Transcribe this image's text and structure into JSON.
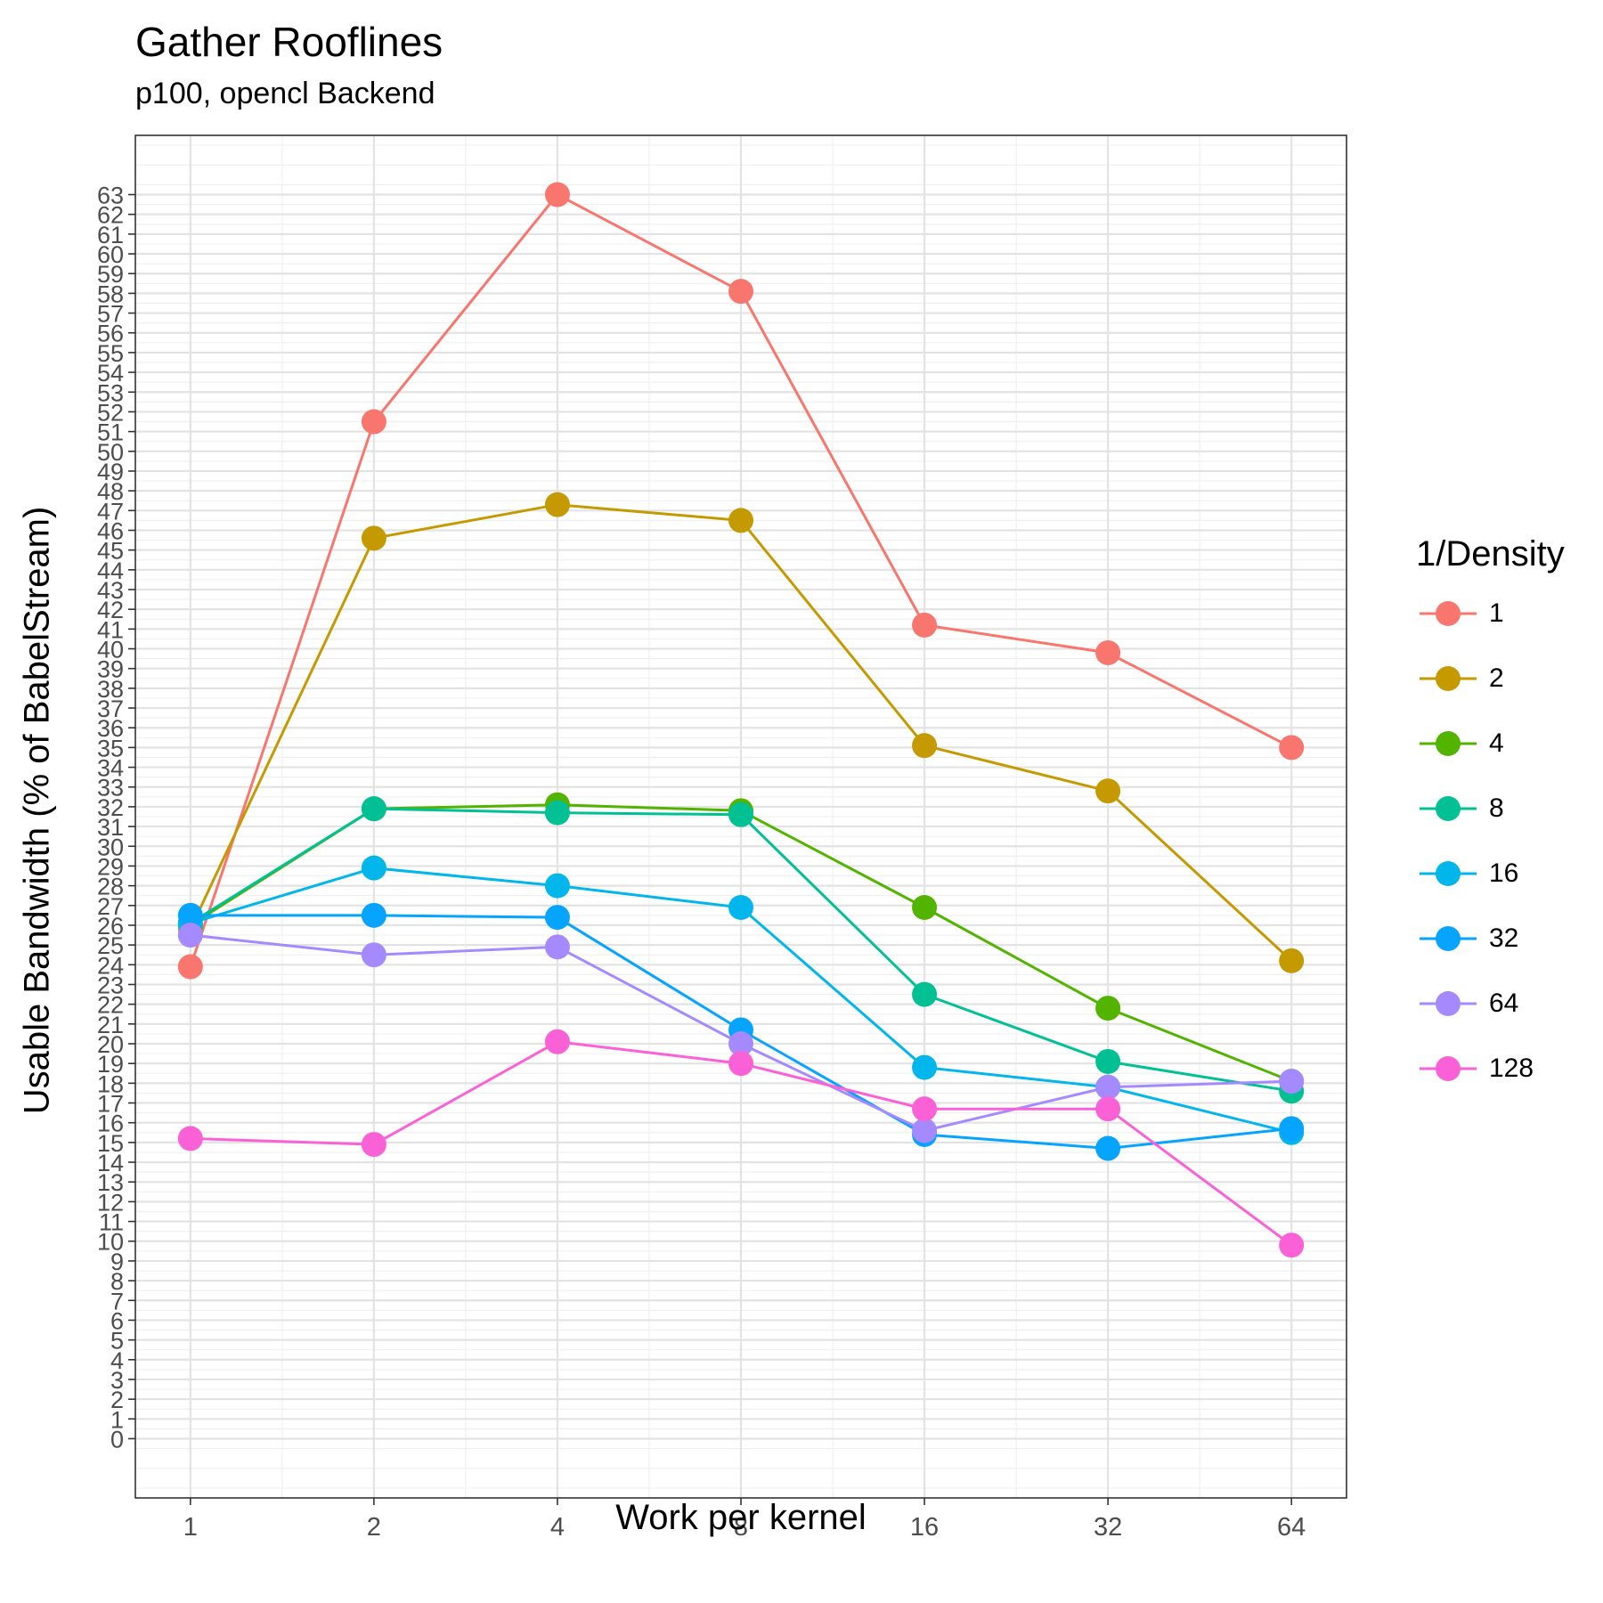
{
  "chart_data": {
    "type": "line",
    "title": "Gather Rooflines",
    "subtitle": "p100, opencl Backend",
    "xlabel": "Work per kernel",
    "ylabel": "Usable Bandwidth (% of BabelStream)",
    "x_scale": "log2",
    "x": [
      1,
      2,
      4,
      8,
      16,
      32,
      64
    ],
    "x_tick_labels": [
      "1",
      "2",
      "4",
      "8",
      "16",
      "32",
      "64"
    ],
    "ylim": [
      -3,
      66
    ],
    "y_ticks": [
      0,
      1,
      2,
      3,
      4,
      5,
      6,
      7,
      8,
      9,
      10,
      11,
      12,
      13,
      14,
      15,
      16,
      17,
      18,
      19,
      20,
      21,
      22,
      23,
      24,
      25,
      26,
      27,
      28,
      29,
      30,
      31,
      32,
      33,
      34,
      35,
      36,
      37,
      38,
      39,
      40,
      41,
      42,
      43,
      44,
      45,
      46,
      47,
      48,
      49,
      50,
      51,
      52,
      53,
      54,
      55,
      56,
      57,
      58,
      59,
      60,
      61,
      62,
      63
    ],
    "grid": true,
    "legend_title": "1/Density",
    "legend_position": "right",
    "series": [
      {
        "name": "1",
        "color": "#F8766D",
        "values": [
          23.9,
          51.5,
          63.0,
          58.1,
          41.2,
          39.8,
          35.0
        ]
      },
      {
        "name": "2",
        "color": "#C49A00",
        "values": [
          25.8,
          45.6,
          47.3,
          46.5,
          35.1,
          32.8,
          24.2
        ]
      },
      {
        "name": "4",
        "color": "#53B400",
        "values": [
          26.0,
          31.9,
          32.1,
          31.8,
          26.9,
          21.8,
          18.1
        ]
      },
      {
        "name": "8",
        "color": "#00C094",
        "values": [
          26.1,
          31.9,
          31.7,
          31.6,
          22.5,
          19.1,
          17.6
        ]
      },
      {
        "name": "16",
        "color": "#00B6EB",
        "values": [
          26.1,
          28.9,
          28.0,
          26.9,
          18.8,
          17.8,
          15.5
        ]
      },
      {
        "name": "32",
        "color": "#06A4FF",
        "values": [
          26.5,
          26.5,
          26.4,
          20.7,
          15.4,
          14.7,
          15.7
        ]
      },
      {
        "name": "64",
        "color": "#A58AFF",
        "values": [
          25.5,
          24.5,
          24.9,
          20.0,
          15.6,
          17.8,
          18.1
        ]
      },
      {
        "name": "128",
        "color": "#FB61D7",
        "values": [
          15.2,
          14.9,
          20.1,
          19.0,
          16.7,
          16.7,
          9.8
        ]
      }
    ]
  }
}
